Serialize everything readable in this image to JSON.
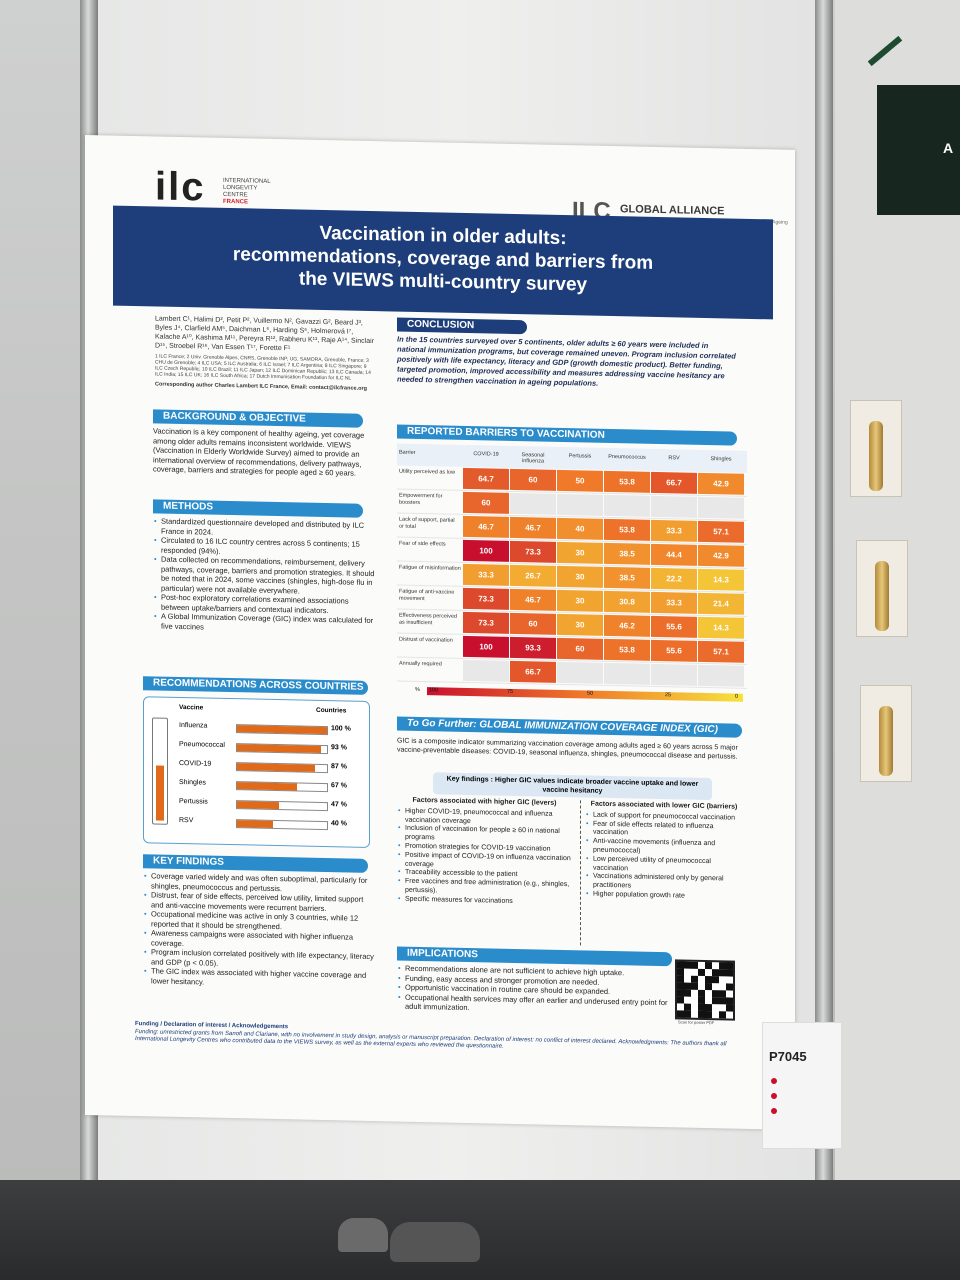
{
  "poster": {
    "logo_ilc": "ilc",
    "logo_ilc_sub": [
      "INTERNATIONAL",
      "LONGEVITY",
      "CENTRE",
      "FRANCE"
    ],
    "logo_alliance_mark": "ILC",
    "logo_alliance_title": "GLOBAL ALLIANCE",
    "logo_alliance_sub": "INTERNATIONAL LONGEVITY CENTRE — Designing the Future of Ageing",
    "title_line1": "Vaccination in older adults:",
    "title_line2": "recommendations, coverage and barriers from",
    "title_line3": "the VIEWS multi-country survey",
    "authors": "Lambert C¹, Halimi D², Petit P², Vuillermo N², Gavazzi G², Beard J³, Byles J⁴, Clarfield AM⁵, Daichman L⁶, Harding S⁶, Holmerová I⁷, Kalache A¹⁰, Kashima M¹¹, Pereyra R¹², Rabheru K¹³, Raje A¹⁴, Sinclair D¹⁵, Stroebel R¹⁶, Van Essen T¹⁷, Forette F¹",
    "affiliations": "1 ILC France; 2 Univ. Grenoble Alpes, CNRS, Grenoble INP, UG, SAMORA, Grenoble, France; 3 CHU de Grenoble; 4 ILC USA; 5 ILC Australia; 6 ILC Israel; 7 ILC Argentina; 8 ILC Singapore; 9 ILC Czech Republic; 10 ILC Brazil; 11 ILC Japan; 12 ILC Dominican Republic; 13 ILC Canada; 14 ILC India; 15 ILC UK; 16 ILC South Africa; 17 Dutch Immunisation Foundation for ILC NL",
    "corresponding": "Corresponding author Charles Lambert ILC France, Email: contact@ilcfrance.org",
    "background_h": "BACKGROUND & OBJECTIVE",
    "background": "Vaccination is a key component of healthy ageing, yet coverage among older adults remains inconsistent worldwide. VIEWS (Vaccination in Elderly Worldwide Survey) aimed to provide an international overview of recommendations, delivery pathways, coverage, barriers and strategies for people aged ≥ 60 years.",
    "methods_h": "METHODS",
    "methods": [
      "Standardized questionnaire developed and distributed by ILC France in 2024.",
      "Circulated to 16 ILC country centres across 5 continents; 15 responded (94%).",
      "Data collected on recommendations, reimbursement, delivery pathways, coverage, barriers and promotion strategies. It should be noted that in 2024, some vaccines (shingles, high-dose flu in particular) were not available everywhere.",
      "Post-hoc exploratory correlations examined associations between uptake/barriers and contextual indicators.",
      "A Global Immunization Coverage (GIC) index was calculated for five vaccines"
    ],
    "rec_h": "RECOMMENDATIONS ACROSS COUNTRIES",
    "rec_col1": "Vaccine",
    "rec_col2": "Countries",
    "rec": [
      {
        "name": "Influenza",
        "pct": "100 %",
        "v": 100
      },
      {
        "name": "Pneumococcal",
        "pct": "93 %",
        "v": 93
      },
      {
        "name": "COVID-19",
        "pct": "87 %",
        "v": 87
      },
      {
        "name": "Shingles",
        "pct": "67 %",
        "v": 67
      },
      {
        "name": "Pertussis",
        "pct": "47 %",
        "v": 47
      },
      {
        "name": "RSV",
        "pct": "40 %",
        "v": 40
      }
    ],
    "kf_h": "KEY FINDINGS",
    "kf": [
      "Coverage varied widely and was often suboptimal, particularly for shingles, pneumococcus and pertussis.",
      "Distrust, fear of side effects, perceived low utility, limited support and anti-vaccine movements were recurrent barriers.",
      "Occupational medicine was active in only 3 countries, while 12 reported that it should be strengthened.",
      "Awareness campaigns were associated with higher influenza coverage.",
      "Program inclusion correlated positively with life expectancy, literacy and GDP (p < 0.05).",
      "The GIC index was associated with higher vaccine coverage and lower hesitancy."
    ],
    "conclusion_h": "CONCLUSION",
    "conclusion": "In the 15 countries surveyed over 5 continents, older adults ≥ 60 years were included in national immunization programs, but coverage remained uneven. Program inclusion correlated positively with life expectancy, literacy and GDP (growth domestic product). Better funding, targeted promotion, improved accessibility and measures addressing vaccine hesitancy are needed to strengthen vaccination in ageing populations.",
    "barriers_h": "REPORTED BARRIERS TO VACCINATION",
    "barriers_corner": "Barrier",
    "barriers_cols": [
      "COVID-19",
      "Seasonal influenza",
      "Pertussis",
      "Pneumococcus",
      "RSV",
      "Shingles"
    ],
    "barriers_rows": [
      {
        "label": "Utility perceived as low",
        "vals": [
          "64.7",
          "60",
          "50",
          "53.8",
          "66.7",
          "42.9"
        ]
      },
      {
        "label": "Empowerment for boosters",
        "vals": [
          "60",
          "",
          "",
          "",
          "",
          ""
        ]
      },
      {
        "label": "Lack of support, partial or total",
        "vals": [
          "46.7",
          "46.7",
          "40",
          "53.8",
          "33.3",
          "57.1"
        ]
      },
      {
        "label": "Fear of side effects",
        "vals": [
          "100",
          "73.3",
          "30",
          "38.5",
          "44.4",
          "42.9"
        ]
      },
      {
        "label": "Fatigue of misinformation",
        "vals": [
          "33.3",
          "26.7",
          "30",
          "38.5",
          "22.2",
          "14.3"
        ]
      },
      {
        "label": "Fatigue of anti-vaccine movement",
        "vals": [
          "73.3",
          "46.7",
          "30",
          "30.8",
          "33.3",
          "21.4"
        ]
      },
      {
        "label": "Effectiveness perceived as insufficient",
        "vals": [
          "73.3",
          "60",
          "30",
          "46.2",
          "55.6",
          "14.3"
        ]
      },
      {
        "label": "Distrust of vaccination",
        "vals": [
          "100",
          "93.3",
          "60",
          "53.8",
          "55.6",
          "57.1"
        ]
      },
      {
        "label": "Annually required",
        "vals": [
          "",
          "66.7",
          "",
          "",
          "",
          ""
        ]
      }
    ],
    "scale_labels": [
      "%",
      "100",
      "75",
      "50",
      "25",
      "0"
    ],
    "gic_h": "To Go Further: GLOBAL IMMUNIZATION COVERAGE INDEX (GIC)",
    "gic": "GIC is a composite indicator summarizing vaccination coverage among adults aged ≥ 60 years across 5 major vaccine-preventable diseases: COVID-19, seasonal influenza, shingles, pneumococcal disease and pertussis.",
    "gic_key": "Key findings : Higher GIC values indicate broader vaccine uptake and lower vaccine hesitancy",
    "higher_h": "Factors associated with higher GIC (levers)",
    "higher": [
      "Higher COVID-19, pneumococcal and influenza vaccination coverage",
      "Inclusion of vaccination for people ≥ 60 in national programs",
      "Promotion strategies for COVID-19 vaccination",
      "Positive impact of COVID-19 on influenza vaccination coverage",
      "Traceability accessible to the patient",
      "Free vaccines and free administration (e.g., shingles, pertussis).",
      "Specific measures for vaccinations"
    ],
    "lower_h": "Factors associated with lower GIC (barriers)",
    "lower": [
      "Lack of support for pneumococcal vaccination",
      "Fear of side effects related to influenza vaccination",
      "Anti-vaccine movements (influenza and pneumococcal)",
      "Low perceived utility of pneumococcal vaccination",
      "Vaccinations administered only by general practitioners",
      "Higher population growth rate"
    ],
    "impl_h": "IMPLICATIONS",
    "impl": [
      "Recommendations alone are not sufficient to achieve high uptake.",
      "Funding, easy access and stronger promotion are needed.",
      "Opportunistic vaccination in routine care should be expanded.",
      "Occupational health services may offer an earlier and underused entry point for adult immunization."
    ],
    "qr_caption": "Scan for poster PDF",
    "funding_h": "Funding / Declaration of interest / Acknowledgements",
    "funding": "Funding: unrestricted grants from Sanofi and Clariane, with no involvement in study design, analysis or manuscript preparation. Declaration of interest: no conflict of interest declared. Acknowledgments: The authors thank all International Longevity Centres who contributed data to the VIEWS survey, as well as the external experts who reviewed the questionnaire."
  },
  "board_label": "P7045",
  "side_panel_letter": "A"
}
